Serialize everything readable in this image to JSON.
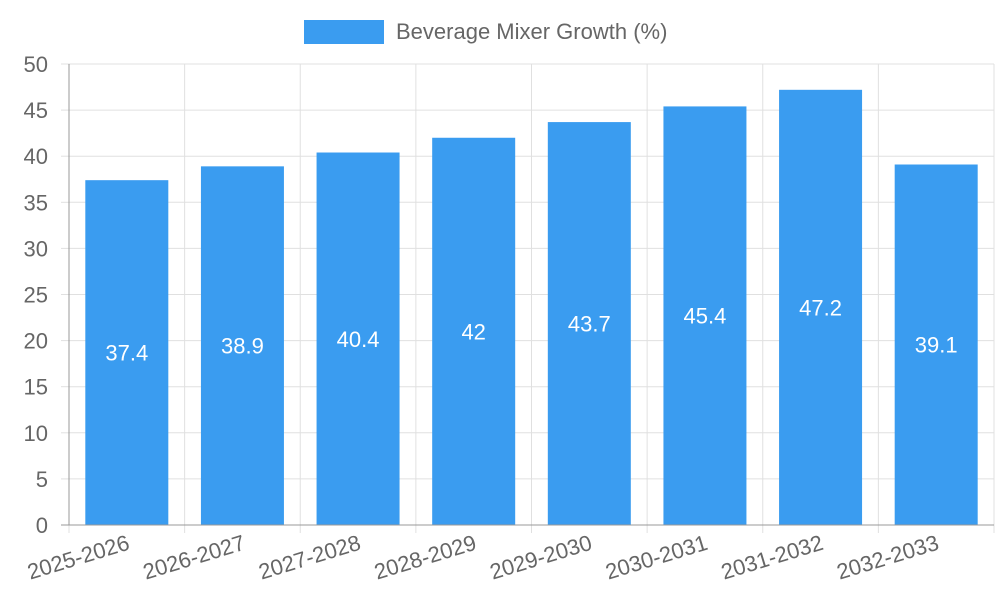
{
  "chart_data": {
    "type": "bar",
    "categories": [
      "2025-2026",
      "2026-2027",
      "2027-2028",
      "2028-2029",
      "2029-2030",
      "2030-2031",
      "2031-2032",
      "2032-2033"
    ],
    "series": [
      {
        "name": "Beverage Mixer Growth (%)",
        "values": [
          37.4,
          38.9,
          40.4,
          42,
          43.7,
          45.4,
          47.2,
          39.1
        ],
        "data_labels": [
          "37.4",
          "38.9",
          "40.4",
          "42",
          "43.7",
          "45.4",
          "47.2",
          "39.1"
        ]
      }
    ],
    "y_ticks": [
      "0",
      "5",
      "10",
      "15",
      "20",
      "25",
      "30",
      "35",
      "40",
      "45",
      "50"
    ],
    "ylim": [
      0,
      50
    ],
    "grid": true,
    "legend_position": "top",
    "colors": {
      "bar": "#3a9cf0",
      "grid": "#e0e0e0",
      "axis": "#999999",
      "text": "#666666"
    }
  }
}
